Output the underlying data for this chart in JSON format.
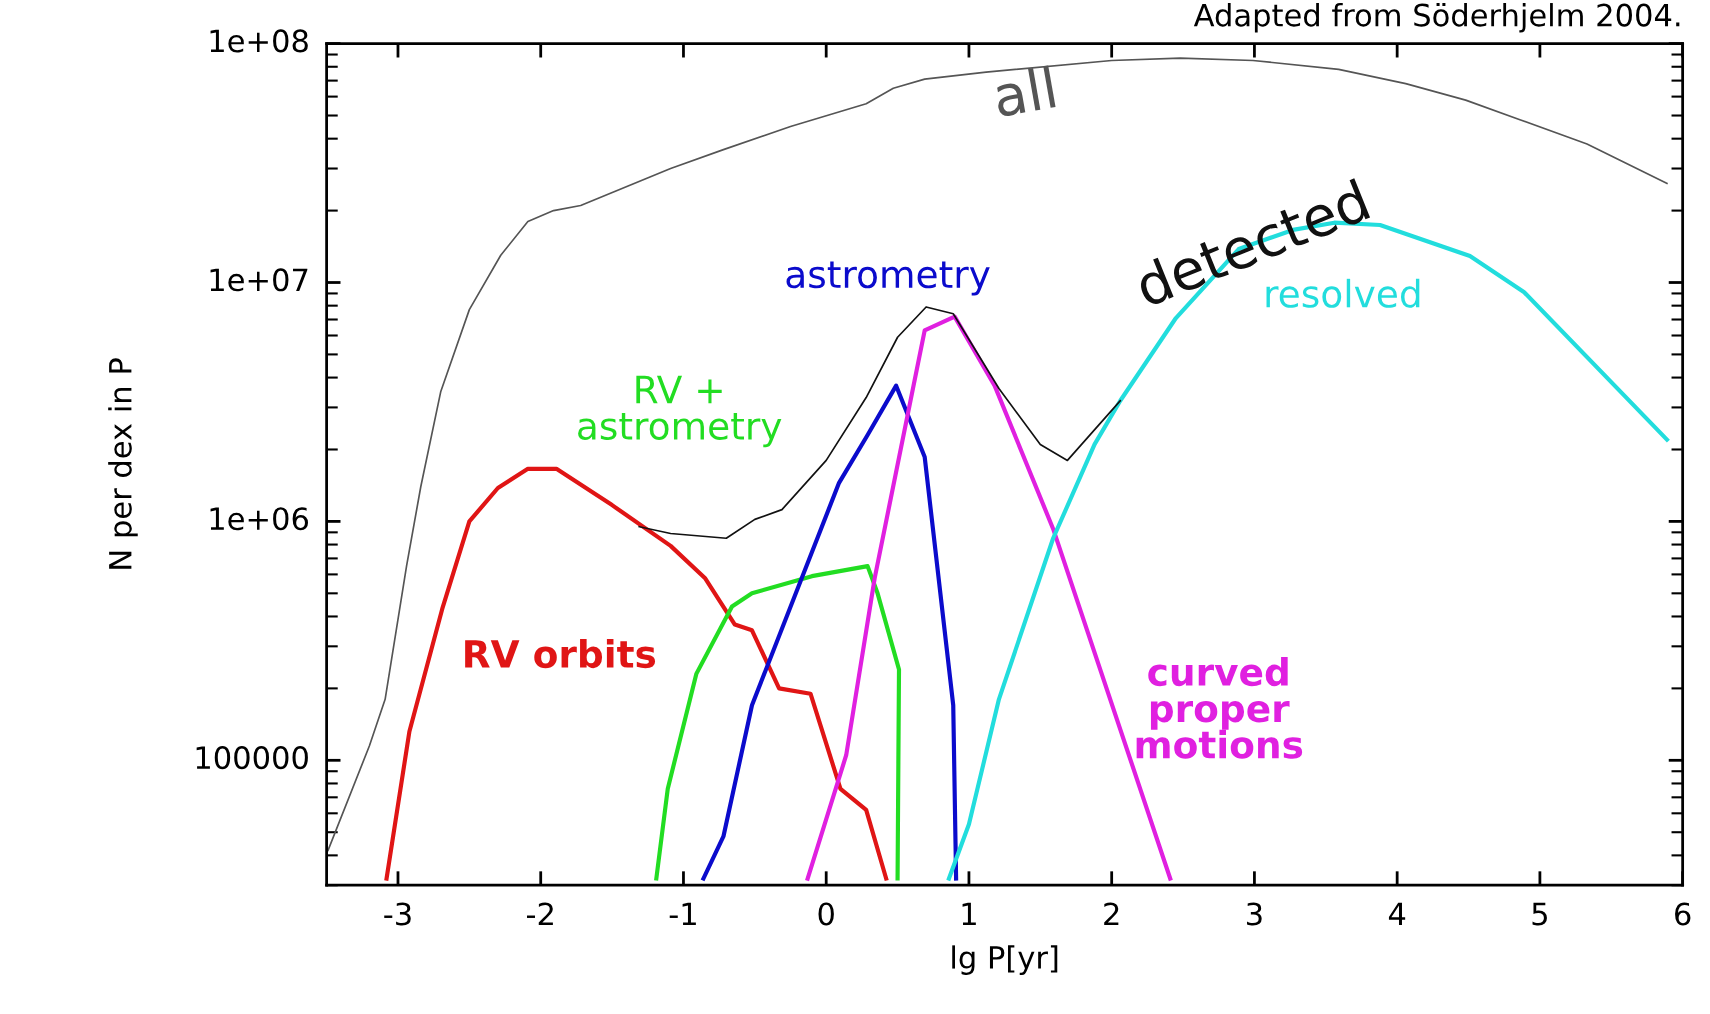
{
  "chart_data": {
    "type": "line",
    "xlabel": "lg P[yr]",
    "ylabel": "N per dex in P",
    "log": "y",
    "xlim": [
      -3.5,
      6
    ],
    "xticks": [
      -3,
      -2,
      -1,
      0,
      1,
      2,
      3,
      4,
      5,
      6
    ],
    "ylim": [
      30000,
      100000000
    ],
    "yticks": [
      100000,
      {
        "value": 1000000,
        "label": "1e+06"
      },
      {
        "value": 10000000,
        "label": "1e+07"
      },
      {
        "value": 100000000,
        "label": "1e+08"
      }
    ],
    "grid": false,
    "legend": false,
    "marker": "none",
    "line_style": "solid",
    "annotations": [
      "Adapted from Söderhjelm 2004."
    ],
    "series": [
      {
        "name": "all",
        "color": "#555555",
        "x": [
          -3.49,
          -3.2,
          -3.09,
          -2.94,
          -2.84,
          -2.7,
          -2.5,
          -2.28,
          -2.09,
          -1.91,
          -1.72,
          -1.09,
          -0.72,
          -0.25,
          0.28,
          0.47,
          0.69,
          1.12,
          2.0,
          2.48,
          2.99,
          3.59,
          4.06,
          4.48,
          4.86,
          5.33,
          5.89
        ],
        "values": [
          42000,
          115000,
          180000,
          650000,
          1400000,
          3500000,
          7700000,
          13000000,
          18000000,
          20000000,
          21000000,
          30000000,
          36000000,
          45000000,
          56000000,
          65000000,
          71000000,
          76000000,
          85000000,
          87000000,
          85000000,
          78000000,
          68000000,
          58000000,
          48000000,
          38000000,
          26000000
        ]
      },
      {
        "name": "detected",
        "color": "#111111",
        "x": [
          -1.31,
          -1.09,
          -0.7,
          -0.5,
          -0.31,
          0.0,
          0.28,
          0.5,
          0.7,
          0.89,
          1.21,
          1.5,
          1.69,
          2.06
        ],
        "values": [
          950000,
          890000,
          850000,
          1020000,
          1120000,
          1800000,
          3300000,
          5900000,
          7900000,
          7400000,
          3600000,
          2100000,
          1800000,
          3200000
        ]
      },
      {
        "name": "RV orbits",
        "color": "#e01515",
        "x": [
          -3.08,
          -2.92,
          -2.69,
          -2.5,
          -2.3,
          -2.09,
          -1.89,
          -1.5,
          -1.09,
          -0.85,
          -0.64,
          -0.52,
          -0.33,
          -0.11,
          0.1,
          0.28,
          0.42
        ],
        "values": [
          32000,
          132000,
          430000,
          1000000,
          1380000,
          1660000,
          1660000,
          1170000,
          790000,
          580000,
          370000,
          350000,
          200000,
          190000,
          76000,
          62000,
          32000
        ]
      },
      {
        "name": "RV +\nastrometry",
        "color": "#22dd22",
        "x": [
          -1.19,
          -1.11,
          -0.91,
          -0.66,
          -0.52,
          -0.1,
          0.29,
          0.36,
          0.51,
          0.5
        ],
        "values": [
          32000,
          76000,
          230000,
          440000,
          500000,
          590000,
          650000,
          500000,
          240000,
          32000
        ]
      },
      {
        "name": "astrometry",
        "color": "#0b0bcc",
        "x": [
          -0.86,
          -0.72,
          -0.52,
          0.09,
          0.29,
          0.49,
          0.69,
          0.89,
          0.91
        ],
        "values": [
          32000,
          48000,
          170000,
          1450000,
          2300000,
          3700000,
          1860000,
          170000,
          32000
        ]
      },
      {
        "name": "curved\nproper\nmotions",
        "color": "#e020e0",
        "x": [
          -0.13,
          0.14,
          0.34,
          0.69,
          0.9,
          1.18,
          1.59,
          2.41
        ],
        "values": [
          32000,
          105000,
          580000,
          6300000,
          7200000,
          3700000,
          930000,
          32000
        ]
      },
      {
        "name": "resolved",
        "color": "#22dddd",
        "x": [
          0.86,
          1.0,
          1.21,
          1.59,
          1.88,
          2.06,
          2.45,
          2.89,
          3.27,
          3.56,
          3.88,
          4.51,
          4.89,
          5.89
        ],
        "values": [
          32000,
          54000,
          180000,
          850000,
          2100000,
          3200000,
          7100000,
          13800000,
          16600000,
          17800000,
          17400000,
          12900000,
          9100000,
          2200000
        ]
      }
    ]
  }
}
